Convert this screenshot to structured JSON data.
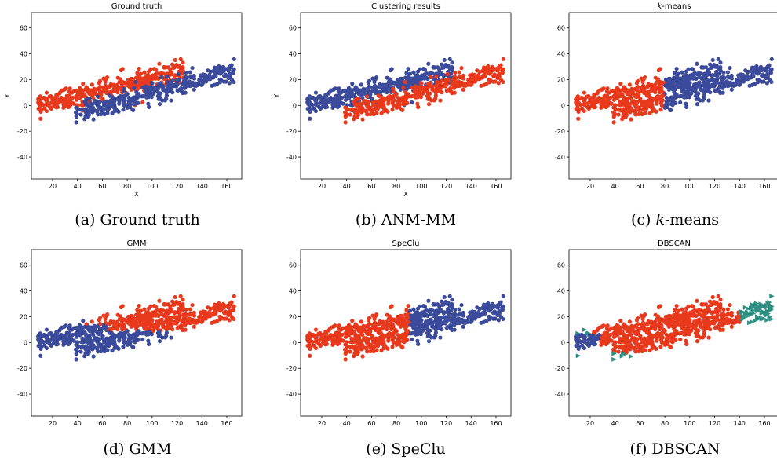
{
  "colors": {
    "red": "#e8391d",
    "blue": "#3b4a9a",
    "teal": "#2e8f83"
  },
  "chart_data": [
    {
      "type": "scatter",
      "title": "Ground truth",
      "caption": "(a) Ground truth",
      "xlabel": "X",
      "ylabel": "Y",
      "xlim": [
        3,
        172
      ],
      "ylim": [
        -57,
        72
      ],
      "xticks": [
        20,
        40,
        60,
        80,
        100,
        120,
        140,
        160
      ],
      "yticks": [
        -40,
        -20,
        0,
        20,
        40,
        60
      ],
      "scheme": "ground_truth"
    },
    {
      "type": "scatter",
      "title": "Clustering results",
      "caption": "(b) ANM-MM",
      "xlabel": "X",
      "ylabel": "Y",
      "xlim": [
        3,
        172
      ],
      "ylim": [
        -57,
        72
      ],
      "xticks": [
        20,
        40,
        60,
        80,
        100,
        120,
        140,
        160
      ],
      "yticks": [
        -40,
        -20,
        0,
        20,
        40,
        60
      ],
      "scheme": "anm"
    },
    {
      "type": "scatter",
      "title": "k-means",
      "caption": "(c) k-means",
      "xlabel": "",
      "ylabel": "",
      "xlim": [
        3,
        172
      ],
      "ylim": [
        -57,
        72
      ],
      "xticks": [
        20,
        40,
        60,
        80,
        100,
        120,
        140,
        160
      ],
      "yticks": [
        -40,
        -20,
        0,
        20,
        40,
        60
      ],
      "scheme": "kmeans"
    },
    {
      "type": "scatter",
      "title": "GMM",
      "caption": "(d) GMM",
      "xlabel": "",
      "ylabel": "",
      "xlim": [
        3,
        172
      ],
      "ylim": [
        -57,
        72
      ],
      "xticks": [
        20,
        40,
        60,
        80,
        100,
        120,
        140,
        160
      ],
      "yticks": [
        -40,
        -20,
        0,
        20,
        40,
        60
      ],
      "scheme": "gmm"
    },
    {
      "type": "scatter",
      "title": "SpeClu",
      "caption": "(e) SpeClu",
      "xlabel": "",
      "ylabel": "",
      "xlim": [
        3,
        172
      ],
      "ylim": [
        -57,
        72
      ],
      "xticks": [
        20,
        40,
        60,
        80,
        100,
        120,
        140,
        160
      ],
      "yticks": [
        -40,
        -20,
        0,
        20,
        40,
        60
      ],
      "scheme": "speclu"
    },
    {
      "type": "scatter",
      "title": "DBSCAN",
      "caption": "(f) DBSCAN",
      "xlabel": "",
      "ylabel": "",
      "xlim": [
        3,
        172
      ],
      "ylim": [
        -57,
        72
      ],
      "xticks": [
        20,
        40,
        60,
        80,
        100,
        120,
        140,
        160
      ],
      "yticks": [
        -40,
        -20,
        0,
        20,
        40,
        60
      ],
      "scheme": "dbscan"
    }
  ]
}
